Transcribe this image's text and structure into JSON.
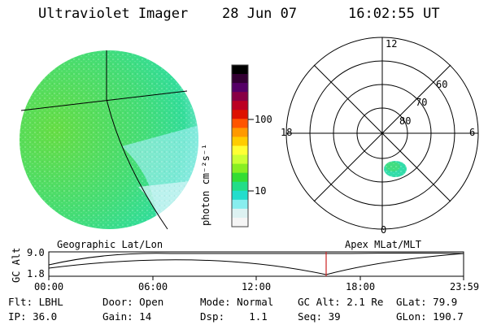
{
  "header": {
    "instrument": "Ultraviolet Imager",
    "date": "28 Jun 07",
    "time": "16:02:55 UT"
  },
  "colors": {
    "disk_base": "#66dd44",
    "disk_mid": "#33dd99",
    "disk_edge": "#99eeee",
    "aurora_spot": "#33ddaa",
    "marker": "#cc2222"
  },
  "colorbar": {
    "label": "photon cm⁻²s⁻¹",
    "ticks": [
      "100",
      "10"
    ],
    "colors": [
      "#000000",
      "#330033",
      "#550066",
      "#880044",
      "#bb0022",
      "#dd1100",
      "#ff5500",
      "#ff9900",
      "#ffcc00",
      "#ffff33",
      "#ccff33",
      "#88ee22",
      "#33dd33",
      "#22dd88",
      "#22ddcc",
      "#88eeee",
      "#ddf2f2",
      "#f5f5f5"
    ]
  },
  "polar_plot": {
    "mlt_labels": [
      "12",
      "18",
      "6",
      "0"
    ],
    "lat_labels": [
      "60",
      "70",
      "80"
    ]
  },
  "labels": {
    "left_projection": "Geographic Lat/Lon",
    "right_projection": "Apex MLat/MLT"
  },
  "altitude_plot": {
    "ylabel": "GC Alt",
    "yticks": [
      "9.0",
      "1.8"
    ],
    "xticks": [
      "00:00",
      "06:00",
      "12:00",
      "18:00",
      "23:59"
    ],
    "current_time_fraction": 0.6687
  },
  "status": {
    "row1": [
      {
        "label": "Flt:",
        "value": "LBHL"
      },
      {
        "label": "Door:",
        "value": "Open"
      },
      {
        "label": "Mode:",
        "value": "Normal"
      },
      {
        "label": "GC Alt:",
        "value": "2.1 Re"
      },
      {
        "label": "GLat:",
        "value": "79.9"
      }
    ],
    "row2": [
      {
        "label": "IP:",
        "value": "36.0"
      },
      {
        "label": "Gain:",
        "value": "14"
      },
      {
        "label": "Dsp:",
        "value": "1.1"
      },
      {
        "label": "Seq:",
        "value": "39"
      },
      {
        "label": "GLon:",
        "value": "190.7"
      }
    ]
  }
}
